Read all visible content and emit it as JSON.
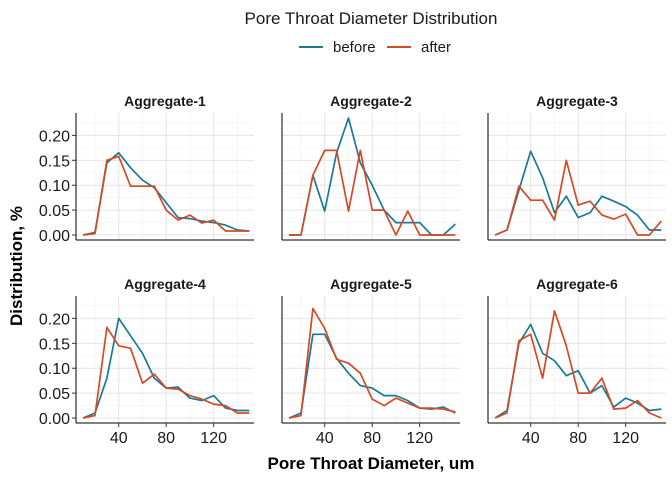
{
  "chart_data": {
    "type": "line",
    "title": "Pore Throat Diameter Distribution",
    "xlabel": "Pore Throat Diameter, um",
    "ylabel": "Distribution, %",
    "xlim": [
      4,
      154
    ],
    "ylim": [
      -0.01,
      0.245
    ],
    "x_ticks": [
      40,
      80,
      120
    ],
    "y_ticks": [
      0.0,
      0.05,
      0.1,
      0.15,
      0.2
    ],
    "y_tick_labels": [
      "0.00",
      "0.05",
      "0.10",
      "0.15",
      "0.20"
    ],
    "grid": true,
    "legend_position": "top",
    "colors": {
      "before": "#1a7a96",
      "after": "#d44a26"
    },
    "panels": [
      {
        "title": "Aggregate-1",
        "series": [
          {
            "name": "before",
            "x": [
              10,
              20,
              30,
              40,
              50,
              60,
              70,
              80,
              90,
              100,
              110,
              120,
              130,
              140,
              150
            ],
            "y": [
              0,
              0.005,
              0.145,
              0.165,
              0.135,
              0.11,
              0.095,
              0.065,
              0.035,
              0.033,
              0.028,
              0.025,
              0.02,
              0.01,
              0.008
            ]
          },
          {
            "name": "after",
            "x": [
              10,
              20,
              30,
              40,
              50,
              60,
              70,
              80,
              90,
              100,
              110,
              120,
              130,
              140,
              150
            ],
            "y": [
              0,
              0.003,
              0.15,
              0.158,
              0.098,
              0.098,
              0.098,
              0.05,
              0.03,
              0.04,
              0.024,
              0.03,
              0.008,
              0.008,
              0.008
            ]
          }
        ]
      },
      {
        "title": "Aggregate-2",
        "series": [
          {
            "name": "before",
            "x": [
              10,
              20,
              30,
              40,
              50,
              60,
              70,
              80,
              90,
              100,
              110,
              120,
              130,
              140,
              150
            ],
            "y": [
              0,
              0,
              0.12,
              0.048,
              0.165,
              0.235,
              0.145,
              0.1,
              0.05,
              0.025,
              0.025,
              0.025,
              0,
              0,
              0.022
            ]
          },
          {
            "name": "after",
            "x": [
              10,
              20,
              30,
              40,
              50,
              60,
              70,
              80,
              90,
              100,
              110,
              120,
              130,
              140,
              150
            ],
            "y": [
              0,
              0,
              0.12,
              0.17,
              0.17,
              0.048,
              0.17,
              0.05,
              0.05,
              0,
              0.048,
              0,
              0,
              0,
              0
            ]
          }
        ]
      },
      {
        "title": "Aggregate-3",
        "series": [
          {
            "name": "before",
            "x": [
              10,
              20,
              30,
              40,
              50,
              60,
              70,
              80,
              90,
              100,
              110,
              120,
              130,
              140,
              150
            ],
            "y": [
              0,
              0.01,
              0.09,
              0.168,
              0.115,
              0.045,
              0.078,
              0.035,
              0.045,
              0.078,
              0.068,
              0.057,
              0.04,
              0.01,
              0.01
            ]
          },
          {
            "name": "after",
            "x": [
              10,
              20,
              30,
              40,
              50,
              60,
              70,
              80,
              90,
              100,
              110,
              120,
              130,
              140,
              150
            ],
            "y": [
              0,
              0.01,
              0.098,
              0.07,
              0.07,
              0.03,
              0.15,
              0.06,
              0.068,
              0.04,
              0.032,
              0.042,
              0,
              0,
              0.028
            ]
          }
        ]
      },
      {
        "title": "Aggregate-4",
        "series": [
          {
            "name": "before",
            "x": [
              10,
              20,
              30,
              40,
              50,
              60,
              70,
              80,
              90,
              100,
              110,
              120,
              130,
              140,
              150
            ],
            "y": [
              0,
              0.01,
              0.08,
              0.2,
              0.165,
              0.13,
              0.08,
              0.06,
              0.062,
              0.04,
              0.035,
              0.045,
              0.02,
              0.015,
              0.015
            ]
          },
          {
            "name": "after",
            "x": [
              10,
              20,
              30,
              40,
              50,
              60,
              70,
              80,
              90,
              100,
              110,
              120,
              130,
              140,
              150
            ],
            "y": [
              0,
              0.005,
              0.182,
              0.145,
              0.14,
              0.07,
              0.088,
              0.06,
              0.058,
              0.045,
              0.038,
              0.028,
              0.025,
              0.01,
              0.01
            ]
          }
        ]
      },
      {
        "title": "Aggregate-5",
        "series": [
          {
            "name": "before",
            "x": [
              10,
              20,
              30,
              40,
              50,
              60,
              70,
              80,
              90,
              100,
              110,
              120,
              130,
              140,
              150
            ],
            "y": [
              0,
              0.01,
              0.168,
              0.168,
              0.12,
              0.09,
              0.065,
              0.06,
              0.045,
              0.045,
              0.035,
              0.02,
              0.018,
              0.022,
              0.01
            ]
          },
          {
            "name": "after",
            "x": [
              10,
              20,
              30,
              40,
              50,
              60,
              70,
              80,
              90,
              100,
              110,
              120,
              130,
              140,
              150
            ],
            "y": [
              0,
              0.005,
              0.22,
              0.18,
              0.118,
              0.11,
              0.09,
              0.038,
              0.025,
              0.04,
              0.03,
              0.02,
              0.02,
              0.018,
              0.012
            ]
          }
        ]
      },
      {
        "title": "Aggregate-6",
        "series": [
          {
            "name": "before",
            "x": [
              10,
              20,
              30,
              40,
              50,
              60,
              70,
              80,
              90,
              100,
              110,
              120,
              130,
              140,
              150
            ],
            "y": [
              0,
              0.015,
              0.15,
              0.188,
              0.13,
              0.115,
              0.085,
              0.095,
              0.05,
              0.065,
              0.022,
              0.04,
              0.03,
              0.015,
              0.018
            ]
          },
          {
            "name": "after",
            "x": [
              10,
              20,
              30,
              40,
              50,
              60,
              70,
              80,
              90,
              100,
              110,
              120,
              130,
              140,
              150
            ],
            "y": [
              0,
              0.01,
              0.155,
              0.168,
              0.08,
              0.215,
              0.145,
              0.05,
              0.05,
              0.08,
              0.018,
              0.02,
              0.035,
              0.01,
              0
            ]
          }
        ]
      }
    ]
  }
}
